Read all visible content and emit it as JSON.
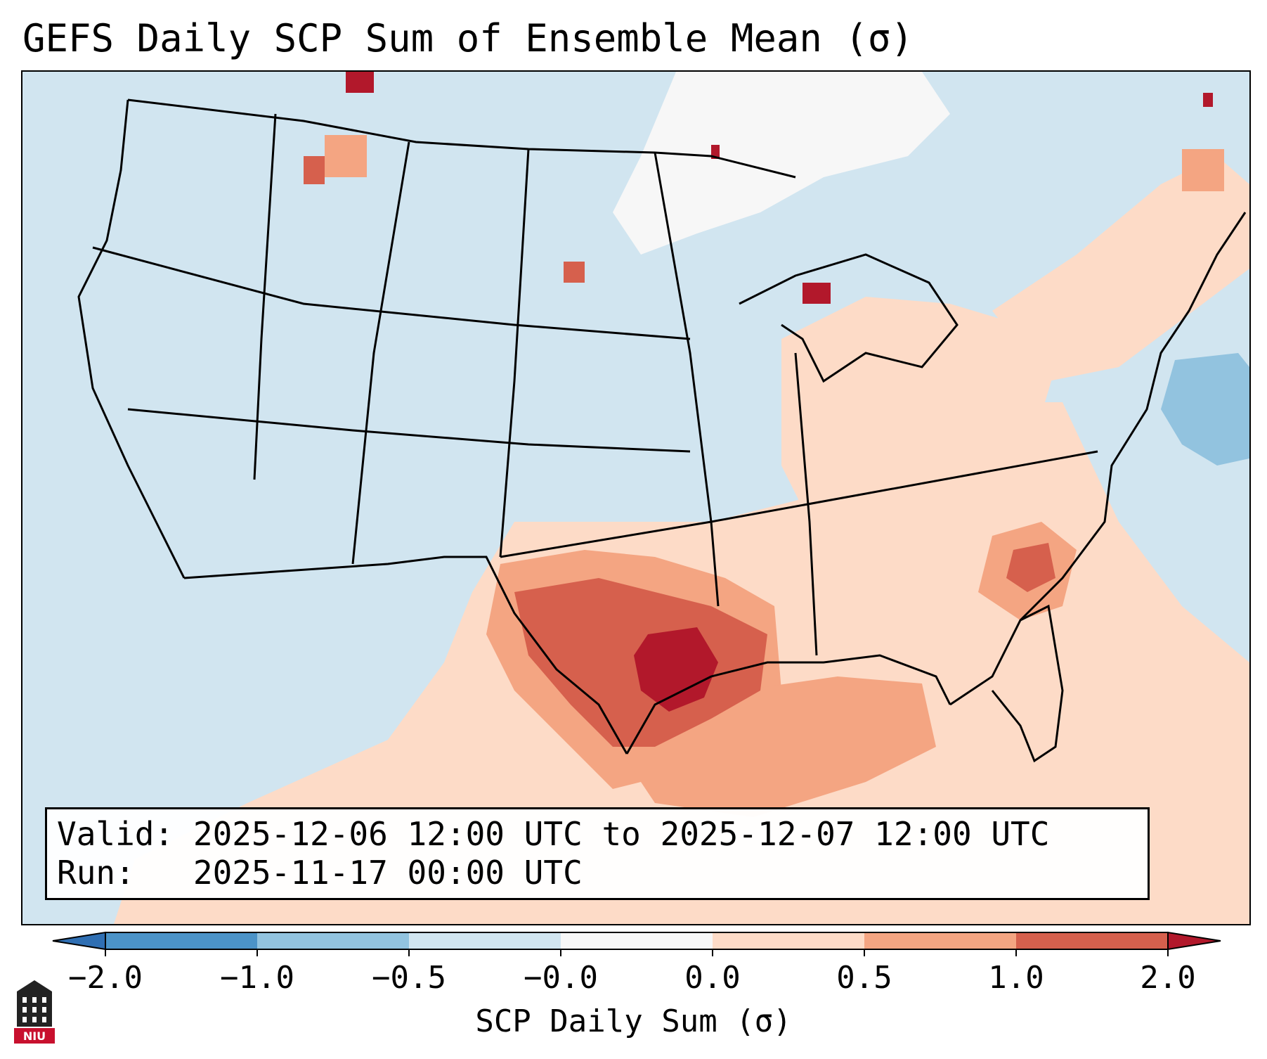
{
  "title": "GEFS Daily SCP Sum of Ensemble Mean (σ)",
  "info": {
    "valid_label": "Valid:",
    "valid_value": "2025-12-06 12:00 UTC to 2025-12-07 12:00 UTC",
    "run_label": "Run:",
    "run_value": "2025-11-17 00:00 UTC"
  },
  "colorbar": {
    "label": "SCP Daily Sum (σ)",
    "ticks": [
      "−2.0",
      "−1.0",
      "−0.5",
      "−0.0",
      "0.0",
      "0.5",
      "1.0",
      "2.0"
    ],
    "bins": [
      {
        "range": "< -2.0",
        "color": "#2f6fb3"
      },
      {
        "range": "-2.0 to -1.0",
        "color": "#4b93c8"
      },
      {
        "range": "-1.0 to -0.5",
        "color": "#92c3df"
      },
      {
        "range": "-0.5 to -0.0",
        "color": "#d1e5f0"
      },
      {
        "range": "-0.0 to 0.0",
        "color": "#f7f7f7"
      },
      {
        "range": "0.0 to 0.5",
        "color": "#fddbc7"
      },
      {
        "range": "0.5 to 1.0",
        "color": "#f4a582"
      },
      {
        "range": "1.0 to 2.0",
        "color": "#d6604d"
      },
      {
        "range": "> 2.0",
        "color": "#b2182b"
      }
    ]
  },
  "map": {
    "region": "Continental United States",
    "background_color": "#d1e5f0",
    "features": [
      {
        "name": "Southern Plains / Gulf Coast maximum",
        "category": "1.0 to 2.0"
      },
      {
        "name": "East Texas core",
        "category": "> 2.0"
      },
      {
        "name": "Gulf of Mexico",
        "category": "0.5 to 1.0"
      },
      {
        "name": "Southeast US",
        "category": "0.0 to 0.5"
      },
      {
        "name": "Carolinas",
        "category": "1.0 to 2.0"
      },
      {
        "name": "Great Lakes",
        "category": "0.5 to 1.0"
      },
      {
        "name": "Canada near-zero",
        "category": "-0.0 to 0.0"
      },
      {
        "name": "Western Atlantic minimum",
        "category": "-1.0 to -0.5"
      }
    ]
  },
  "logo": {
    "text": "NIU"
  }
}
